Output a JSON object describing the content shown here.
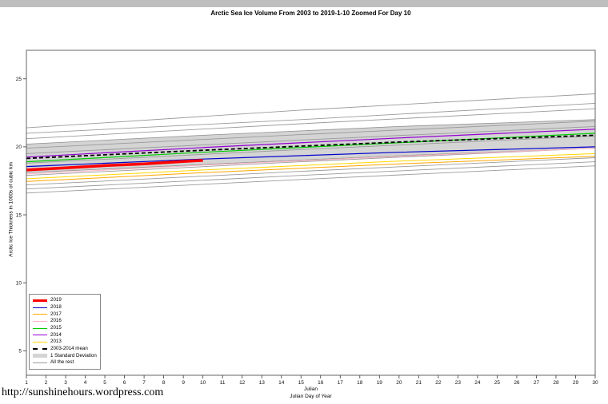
{
  "page": {
    "url_text": "http://sunshinehours.wordpress.com"
  },
  "chart_data": {
    "type": "line",
    "title": "Arctic Sea Ice Volume From 2003 to 2019-1-10 Zoomed For Day 10",
    "xlabel": "Julian",
    "xlabel_sub": "Julian Day of Year",
    "ylabel": "Arctic Ice Thickness in 1000s of cubic km",
    "xlim": [
      1,
      30
    ],
    "ylim": [
      3.2,
      27.1
    ],
    "xticks": [
      1,
      2,
      3,
      4,
      5,
      6,
      7,
      8,
      9,
      10,
      11,
      12,
      13,
      14,
      15,
      16,
      17,
      18,
      19,
      20,
      21,
      22,
      23,
      24,
      25,
      26,
      27,
      28,
      29,
      30
    ],
    "yticks": [
      5,
      10,
      15,
      20,
      25
    ],
    "grid": false,
    "legend_position": "bottom-left",
    "band": {
      "name": "1 Standard Deviation",
      "color": "#d4d4d4",
      "edge_color": "#8f8f8f",
      "upper": [
        [
          1,
          20.2
        ],
        [
          10,
          20.85
        ],
        [
          20,
          21.5
        ],
        [
          30,
          22.0
        ]
      ],
      "lower": [
        [
          1,
          18.1
        ],
        [
          10,
          18.7
        ],
        [
          20,
          19.35
        ],
        [
          30,
          19.9
        ]
      ]
    },
    "rest_name": "All the rest",
    "rest_color": "#9a9a9a",
    "rest_lines": [
      [
        [
          1,
          21.4
        ],
        [
          15,
          22.7
        ],
        [
          30,
          23.9
        ]
      ],
      [
        [
          1,
          21.0
        ],
        [
          15,
          22.0
        ],
        [
          30,
          23.2
        ]
      ],
      [
        [
          1,
          20.6
        ],
        [
          15,
          21.7
        ],
        [
          30,
          22.8
        ]
      ],
      [
        [
          1,
          19.9
        ],
        [
          15,
          20.9
        ],
        [
          30,
          21.9
        ]
      ],
      [
        [
          1,
          19.5
        ],
        [
          15,
          20.5
        ],
        [
          30,
          21.5
        ]
      ],
      [
        [
          1,
          18.8
        ],
        [
          15,
          19.8
        ],
        [
          30,
          20.8
        ]
      ],
      [
        [
          1,
          17.9
        ],
        [
          15,
          18.9
        ],
        [
          30,
          19.9
        ]
      ],
      [
        [
          1,
          17.2
        ],
        [
          15,
          18.2
        ],
        [
          30,
          19.2
        ]
      ],
      [
        [
          1,
          16.9
        ],
        [
          15,
          17.9
        ],
        [
          30,
          18.9
        ]
      ],
      [
        [
          1,
          16.6
        ],
        [
          15,
          17.6
        ],
        [
          30,
          18.6
        ]
      ]
    ],
    "series": [
      {
        "name": "2017",
        "color": "#ffa500",
        "width": 1,
        "points": [
          [
            1,
            17.45
          ],
          [
            10,
            18.1
          ],
          [
            20,
            18.75
          ],
          [
            30,
            19.3
          ]
        ]
      },
      {
        "name": "2013",
        "color": "#ffd700",
        "width": 1,
        "points": [
          [
            1,
            17.65
          ],
          [
            10,
            18.3
          ],
          [
            20,
            18.95
          ],
          [
            30,
            19.5
          ]
        ]
      },
      {
        "name": "2016",
        "color": "#ffb3c6",
        "width": 1,
        "points": [
          [
            1,
            18.0
          ],
          [
            10,
            18.65
          ],
          [
            20,
            19.3
          ],
          [
            30,
            19.9
          ]
        ]
      },
      {
        "name": "2018",
        "color": "#0000cd",
        "width": 1.2,
        "points": [
          [
            1,
            18.55
          ],
          [
            10,
            19.1
          ],
          [
            20,
            19.6
          ],
          [
            30,
            20.0
          ]
        ]
      },
      {
        "name": "2015",
        "color": "#00cc00",
        "width": 1.2,
        "points": [
          [
            1,
            18.9
          ],
          [
            10,
            19.6
          ],
          [
            20,
            20.3
          ],
          [
            30,
            21.0
          ]
        ]
      },
      {
        "name": "2014",
        "color": "#9400d3",
        "width": 1.2,
        "points": [
          [
            1,
            19.25
          ],
          [
            10,
            19.95
          ],
          [
            20,
            20.65
          ],
          [
            30,
            21.3
          ]
        ]
      },
      {
        "name": "2003-2014 mean",
        "color": "#000000",
        "width": 1.8,
        "dash": "5 3",
        "points": [
          [
            1,
            19.15
          ],
          [
            10,
            19.75
          ],
          [
            20,
            20.35
          ],
          [
            30,
            20.85
          ]
        ]
      },
      {
        "name": "2019",
        "color": "#ff0000",
        "width": 3.5,
        "points": [
          [
            1,
            18.3
          ],
          [
            3,
            18.45
          ],
          [
            5,
            18.62
          ],
          [
            7,
            18.75
          ],
          [
            9,
            18.92
          ],
          [
            10,
            19.0
          ]
        ]
      }
    ],
    "legend": [
      {
        "label": "2019",
        "kind": "line",
        "color": "#ff0000",
        "width": 3
      },
      {
        "label": "2018",
        "kind": "line",
        "color": "#0000cd",
        "width": 1
      },
      {
        "label": "2017",
        "kind": "line",
        "color": "#ffa500",
        "width": 1
      },
      {
        "label": "2016",
        "kind": "line",
        "color": "#ffb3c6",
        "width": 1
      },
      {
        "label": "2015",
        "kind": "line",
        "color": "#00cc00",
        "width": 1
      },
      {
        "label": "2014",
        "kind": "line",
        "color": "#9400d3",
        "width": 1
      },
      {
        "label": "2013",
        "kind": "line",
        "color": "#ffd700",
        "width": 1
      },
      {
        "label": "2003-2014 mean",
        "kind": "line",
        "color": "#000000",
        "width": 2,
        "dash": true
      },
      {
        "label": "1 Standard Deviation",
        "kind": "band",
        "color": "#d4d4d4"
      },
      {
        "label": "All the rest",
        "kind": "line",
        "color": "#9a9a9a",
        "width": 1
      }
    ]
  }
}
